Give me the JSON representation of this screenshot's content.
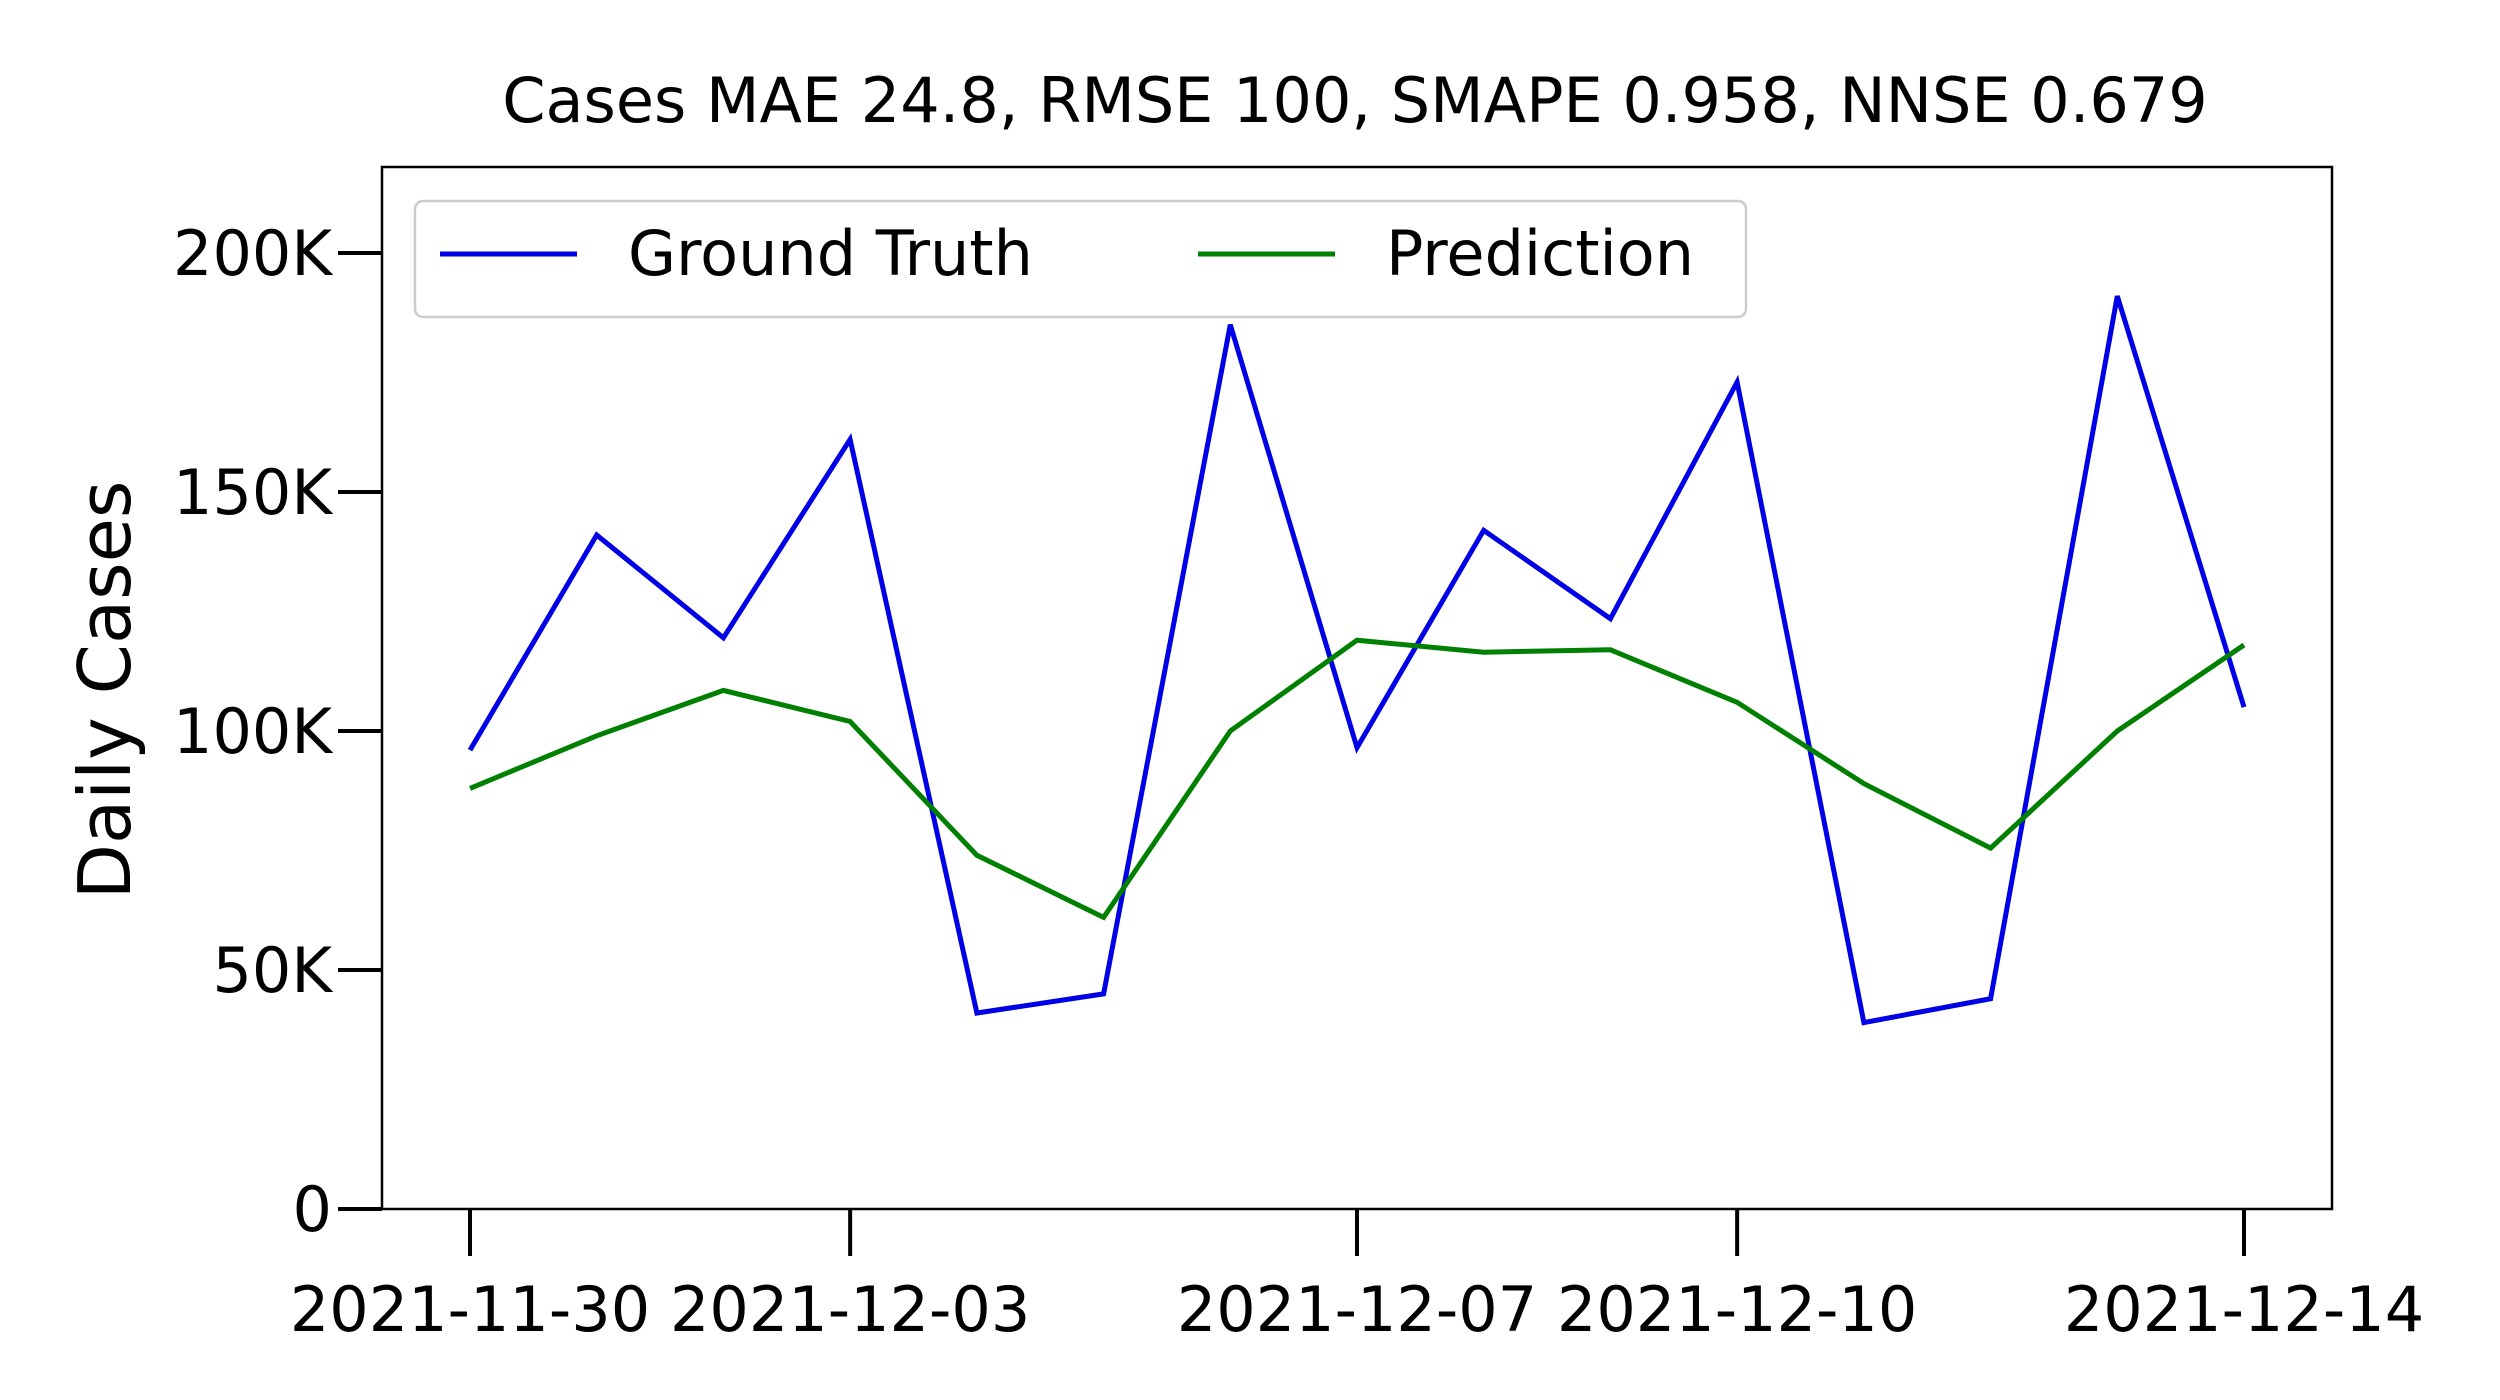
{
  "chart_data": {
    "type": "line",
    "title": "Cases MAE 24.8, RMSE 100, SMAPE 0.958, NNSE 0.679",
    "xlabel": "",
    "ylabel": "Daily Cases",
    "x": [
      "2021-11-30",
      "2021-12-01",
      "2021-12-02",
      "2021-12-03",
      "2021-12-04",
      "2021-12-05",
      "2021-12-06",
      "2021-12-07",
      "2021-12-08",
      "2021-12-09",
      "2021-12-10",
      "2021-12-11",
      "2021-12-12",
      "2021-12-13",
      "2021-12-14"
    ],
    "x_ticks": [
      "2021-11-30",
      "2021-12-03",
      "2021-12-07",
      "2021-12-10",
      "2021-12-14"
    ],
    "y_ticks": [
      0,
      50000,
      100000,
      150000,
      200000
    ],
    "y_tick_labels": [
      "0",
      "50K",
      "100K",
      "150K",
      "200K"
    ],
    "ylim": [
      0,
      218000
    ],
    "grid": false,
    "legend_position": "top-left",
    "series": [
      {
        "name": "Ground Truth",
        "color": "#0000e6",
        "values": [
          96000,
          141000,
          119500,
          161000,
          41000,
          45000,
          185000,
          96500,
          142000,
          123500,
          173000,
          39000,
          44000,
          191000,
          105000
        ]
      },
      {
        "name": "Prediction",
        "color": "#008000",
        "values": [
          88000,
          99000,
          108500,
          102000,
          74000,
          61000,
          100000,
          119000,
          116500,
          117000,
          106000,
          89000,
          75500,
          100000,
          118000
        ]
      }
    ]
  }
}
